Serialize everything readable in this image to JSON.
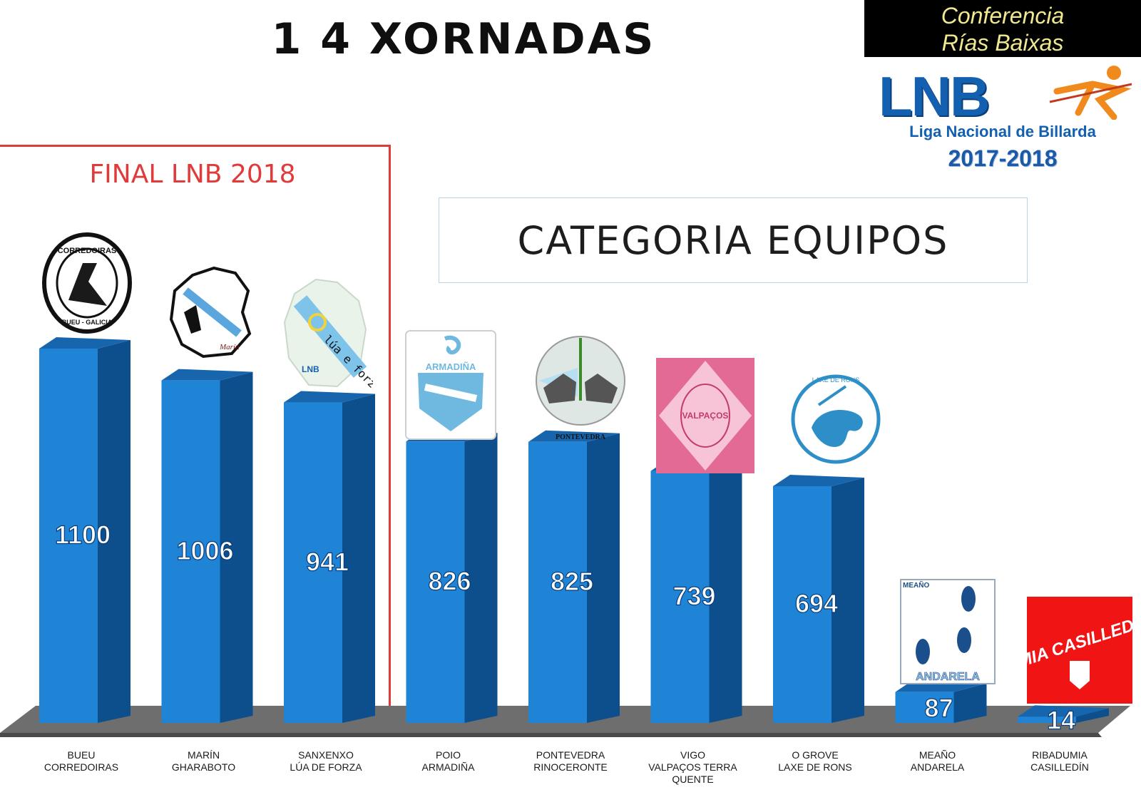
{
  "title": "1 4 XORNADAS",
  "badge": {
    "line1": "Conferencia",
    "line2": "Rías Baixas",
    "logo": "LNB",
    "league": "Liga Nacional de Billarda",
    "season": "2017-2018"
  },
  "final_label": "FINAL LNB 2018",
  "category_label": "CATEGORIA EQUIPOS",
  "chart_data": {
    "type": "bar",
    "categories": [
      [
        "BUEU",
        "CORREDOIRAS"
      ],
      [
        "MARÍN",
        "GHARABOTO"
      ],
      [
        "SANXENXO",
        "LÚA DE FORZA"
      ],
      [
        "POIO",
        "ARMADIÑA"
      ],
      [
        "PONTEVEDRA",
        "RINOCERONTE"
      ],
      [
        "VIGO",
        "VALPAÇOS TERRA",
        "QUENTE"
      ],
      [
        "O GROVE",
        "LAXE DE RONS"
      ],
      [
        "MEAÑO",
        "ANDARELA"
      ],
      [
        "RIBADUMIA",
        "CASILLEDÍN"
      ]
    ],
    "values": [
      1100,
      1006,
      941,
      826,
      825,
      739,
      694,
      87,
      14
    ],
    "colors": {
      "bar_front": "#1f84d6",
      "bar_side": "#0d4f8c",
      "floor": "#6e6e6e"
    }
  },
  "logos": {
    "corredoiras": "CLUBE CORREDOIRAS BUEU - GALICIA",
    "gharaboto": "Marín",
    "lua": "lúa e forza",
    "armadina": "ARMADIÑA BILLARDA",
    "rinoceronte": "PONTEVEDRA",
    "valpacos": "VALPAÇOS",
    "laxe": "Equipo de Billarda LAXE DE RONS",
    "andarela_top": "MEAÑO",
    "andarela": "ANDARELA",
    "casilledin": "UMIA CASILLEDIN"
  }
}
